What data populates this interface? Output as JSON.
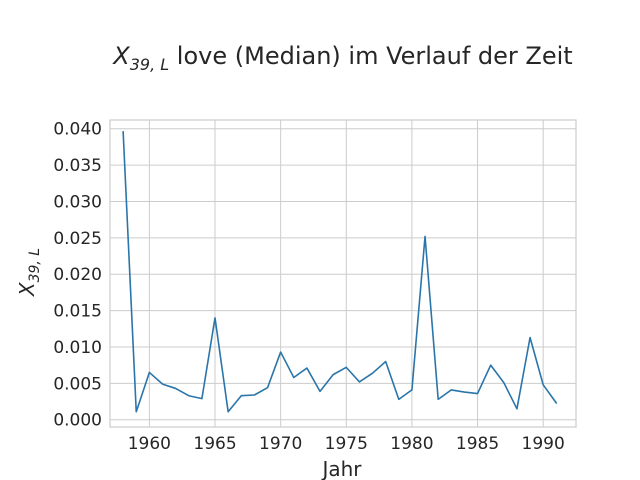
{
  "chart_data": {
    "type": "line",
    "title": {
      "symbol": "X",
      "subscript": "39, L",
      "rest": " love (Median) im Verlauf der Zeit"
    },
    "xlabel": "Jahr",
    "ylabel": {
      "symbol": "X",
      "subscript": "39, L"
    },
    "xlim": [
      1957,
      1992.5
    ],
    "ylim": [
      -0.001,
      0.0412
    ],
    "xticks": [
      1960,
      1965,
      1970,
      1975,
      1980,
      1985,
      1990
    ],
    "yticks": [
      0.0,
      0.005,
      0.01,
      0.015,
      0.02,
      0.025,
      0.03,
      0.035,
      0.04
    ],
    "ytick_labels": [
      "0.000",
      "0.005",
      "0.010",
      "0.015",
      "0.020",
      "0.025",
      "0.030",
      "0.035",
      "0.040"
    ],
    "grid": true,
    "line_color": "#2a75a9",
    "series": [
      {
        "x": [
          1958,
          1959,
          1960,
          1961,
          1962,
          1963,
          1964,
          1965,
          1966,
          1967,
          1968,
          1969,
          1970,
          1971,
          1972,
          1973,
          1974,
          1975,
          1976,
          1977,
          1978,
          1979,
          1980,
          1981,
          1982,
          1983,
          1984,
          1985,
          1986,
          1987,
          1988,
          1989,
          1990,
          1991
        ],
        "values": [
          0.0396,
          0.0011,
          0.0065,
          0.0049,
          0.0043,
          0.0033,
          0.0029,
          0.014,
          0.0011,
          0.0033,
          0.0034,
          0.0044,
          0.0093,
          0.0058,
          0.0071,
          0.0039,
          0.0062,
          0.0072,
          0.0052,
          0.0064,
          0.008,
          0.0028,
          0.0041,
          0.0252,
          0.0028,
          0.0041,
          0.0038,
          0.0036,
          0.0075,
          0.0051,
          0.0015,
          0.0113,
          0.0048,
          0.0023
        ]
      }
    ]
  }
}
